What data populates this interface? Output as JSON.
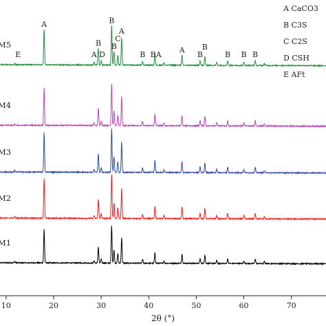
{
  "chart_data": {
    "type": "line",
    "title": "",
    "xlabel": "2θ (°)",
    "ylabel": "",
    "xlim": [
      8,
      78
    ],
    "x_ticks": [
      10,
      20,
      30,
      40,
      50,
      60,
      70
    ],
    "grid": false,
    "legend_position": "top-right",
    "legend": [
      "A CaCO3",
      "B C3S",
      "C C2S",
      "D CSH",
      "E AFt"
    ],
    "peaks": [
      {
        "x": 11.8,
        "h": 0.03
      },
      {
        "x": 18.0,
        "h": 0.72
      },
      {
        "x": 28.5,
        "h": 0.05
      },
      {
        "x": 29.4,
        "h": 0.34
      },
      {
        "x": 30.0,
        "h": 0.08
      },
      {
        "x": 32.2,
        "h": 0.8
      },
      {
        "x": 32.7,
        "h": 0.28
      },
      {
        "x": 33.5,
        "h": 0.2
      },
      {
        "x": 34.3,
        "h": 0.55
      },
      {
        "x": 38.7,
        "h": 0.08
      },
      {
        "x": 41.3,
        "h": 0.22
      },
      {
        "x": 43.2,
        "h": 0.05
      },
      {
        "x": 47.0,
        "h": 0.2
      },
      {
        "x": 50.8,
        "h": 0.1
      },
      {
        "x": 51.8,
        "h": 0.18
      },
      {
        "x": 54.3,
        "h": 0.06
      },
      {
        "x": 56.6,
        "h": 0.1
      },
      {
        "x": 60.0,
        "h": 0.06
      },
      {
        "x": 62.4,
        "h": 0.1
      },
      {
        "x": 64.3,
        "h": 0.04
      }
    ],
    "series": [
      {
        "name": "M1",
        "color": "#000000",
        "baseline_start": 0.3,
        "baseline_end": 0.15,
        "scale": 0.85
      },
      {
        "name": "M2",
        "color": "#ff1a1a",
        "baseline_start": 0.3,
        "baseline_end": 0.15,
        "scale": 1.0
      },
      {
        "name": "M3",
        "color": "#2d4aa8",
        "baseline_start": 0.3,
        "baseline_end": 0.15,
        "scale": 1.0
      },
      {
        "name": "M4",
        "color": "#c040c0",
        "baseline_start": 0.3,
        "baseline_end": 0.15,
        "scale": 0.95
      },
      {
        "name": "M5",
        "color": "#1f8f3a",
        "baseline_start": 0.3,
        "baseline_end": 0.15,
        "scale": 0.9
      }
    ],
    "peak_labels": [
      {
        "text": "E",
        "x": 12.5,
        "series": "M5"
      },
      {
        "text": "A",
        "x": 18.0,
        "series": "M5"
      },
      {
        "text": "A",
        "x": 28.5,
        "series": "M5"
      },
      {
        "text": "B",
        "x": 29.4,
        "series": "M5"
      },
      {
        "text": "D",
        "x": 30.2,
        "series": "M5"
      },
      {
        "text": "B",
        "x": 32.2,
        "series": "M5"
      },
      {
        "text": "B",
        "x": 32.7,
        "series": "M5"
      },
      {
        "text": "C",
        "x": 33.5,
        "series": "M5"
      },
      {
        "text": "A",
        "x": 34.3,
        "series": "M5"
      },
      {
        "text": "B",
        "x": 38.7,
        "series": "M5"
      },
      {
        "text": "BA",
        "x": 41.5,
        "series": "M5"
      },
      {
        "text": "A",
        "x": 47.0,
        "series": "M5"
      },
      {
        "text": "B",
        "x": 50.8,
        "series": "M5"
      },
      {
        "text": "B",
        "x": 51.8,
        "series": "M5"
      },
      {
        "text": "B",
        "x": 56.6,
        "series": "M5"
      },
      {
        "text": "B",
        "x": 60.0,
        "series": "M5"
      },
      {
        "text": "B",
        "x": 62.4,
        "series": "M5"
      }
    ]
  }
}
